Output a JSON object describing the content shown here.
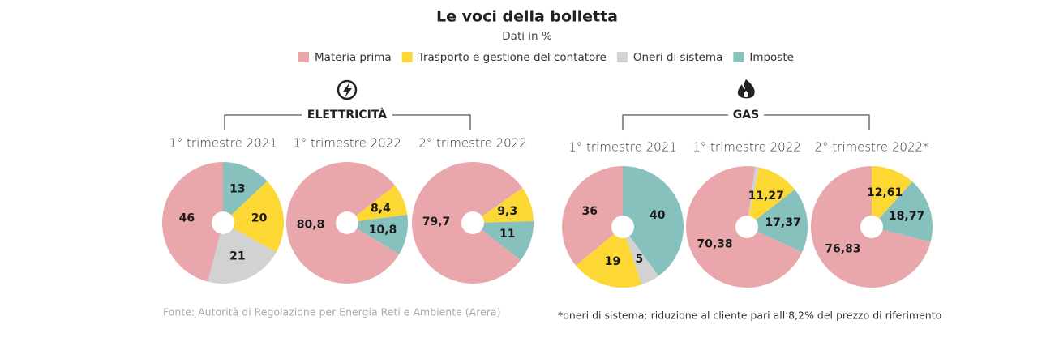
{
  "title": "Le voci della bolletta",
  "subtitle": "Dati in %",
  "legend": [
    {
      "name": "Materia prima",
      "color": "#eaa7ab"
    },
    {
      "name": "Trasporto e gestione del contatore",
      "color": "#fdd835"
    },
    {
      "name": "Oneri di sistema",
      "color": "#d2d2d2"
    },
    {
      "name": "Imposte",
      "color": "#86c1be"
    }
  ],
  "groups": [
    "ELETTRICITÀ",
    "GAS"
  ],
  "chart_data": [
    {
      "type": "pie",
      "title": "1° trimestre 2021",
      "values": [
        46,
        20,
        21,
        13
      ],
      "value_labels": [
        "46",
        "20",
        "21",
        "13"
      ]
    },
    {
      "type": "pie",
      "title": "1° trimestre 2022",
      "values": [
        80.8,
        8.4,
        null,
        10.8
      ],
      "value_labels": [
        "80,8",
        "8,4",
        null,
        "10,8"
      ]
    },
    {
      "type": "pie",
      "title": "2° trimestre 2022",
      "values": [
        79.7,
        9.3,
        null,
        11
      ],
      "value_labels": [
        "79,7",
        "9,3",
        null,
        "11"
      ]
    },
    {
      "type": "pie",
      "title": "1° trimestre 2021",
      "values": [
        36,
        19,
        5,
        40
      ],
      "value_labels": [
        "36",
        "19",
        "5",
        "40"
      ]
    },
    {
      "type": "pie",
      "title": "1° trimestre 2022",
      "values": [
        70.38,
        11.27,
        0.98,
        17.37
      ],
      "value_labels": [
        "70,38",
        "11,27",
        null,
        "17,37"
      ]
    },
    {
      "type": "pie",
      "title": "2° trimestre 2022*",
      "values": [
        76.83,
        12.61,
        null,
        18.77
      ],
      "value_labels": [
        "76,83",
        "12,61",
        null,
        "18,77"
      ]
    }
  ],
  "source": "Fonte: Autorità di Regolazione per Energia Reti e Ambiente (Arera)",
  "note": "*oneri di sistema: riduzione al cliente pari all’8,2% del prezzo di riferimento"
}
